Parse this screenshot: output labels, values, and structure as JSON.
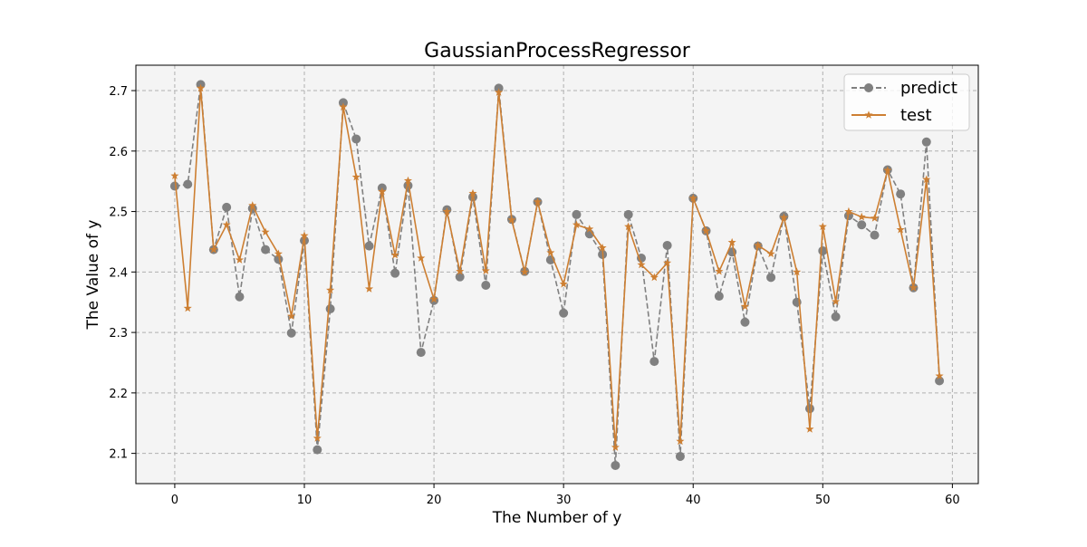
{
  "chart_data": {
    "type": "line",
    "title": "GaussianProcessRegressor",
    "xlabel": "The Number of y",
    "ylabel": "The Value of y",
    "xlim": [
      -3,
      62
    ],
    "ylim": [
      2.05,
      2.742
    ],
    "xticks": [
      0,
      10,
      20,
      30,
      40,
      50,
      60
    ],
    "yticks": [
      2.1,
      2.2,
      2.3,
      2.4,
      2.5,
      2.6,
      2.7
    ],
    "grid": true,
    "legend": "top-right",
    "series": [
      {
        "name": "predict",
        "color": "#808080",
        "linestyle": "dashed",
        "marker": "circle",
        "x": [
          0,
          1,
          2,
          3,
          4,
          5,
          6,
          7,
          8,
          9,
          10,
          11,
          12,
          13,
          14,
          15,
          16,
          17,
          18,
          19,
          20,
          21,
          22,
          23,
          24,
          25,
          26,
          27,
          28,
          29,
          30,
          31,
          32,
          33,
          34,
          35,
          36,
          37,
          38,
          39,
          40,
          41,
          42,
          43,
          44,
          45,
          46,
          47,
          48,
          49,
          50,
          51,
          52,
          53,
          54,
          55,
          56,
          57,
          58,
          59
        ],
        "values": [
          2.542,
          2.545,
          2.71,
          2.437,
          2.507,
          2.359,
          2.505,
          2.437,
          2.421,
          2.299,
          2.452,
          2.106,
          2.339,
          2.68,
          2.62,
          2.443,
          2.539,
          2.398,
          2.543,
          2.267,
          2.353,
          2.503,
          2.392,
          2.524,
          2.378,
          2.704,
          2.487,
          2.401,
          2.516,
          2.42,
          2.332,
          2.495,
          2.463,
          2.429,
          2.08,
          2.495,
          2.423,
          2.252,
          2.444,
          2.095,
          2.522,
          2.468,
          2.36,
          2.433,
          2.317,
          2.443,
          2.391,
          2.492,
          2.35,
          2.174,
          2.435,
          2.326,
          2.493,
          2.478,
          2.461,
          2.569,
          2.529,
          2.374,
          2.615,
          2.22
        ]
      },
      {
        "name": "test",
        "color": "#cd7f32",
        "linestyle": "solid",
        "marker": "star",
        "x": [
          0,
          1,
          2,
          3,
          4,
          5,
          6,
          7,
          8,
          9,
          10,
          11,
          12,
          13,
          14,
          15,
          16,
          17,
          18,
          19,
          20,
          21,
          22,
          23,
          24,
          25,
          26,
          27,
          28,
          29,
          30,
          31,
          32,
          33,
          34,
          35,
          36,
          37,
          38,
          39,
          40,
          41,
          42,
          43,
          44,
          45,
          46,
          47,
          48,
          49,
          50,
          51,
          52,
          53,
          54,
          55,
          56,
          57,
          58,
          59
        ],
        "values": [
          2.559,
          2.34,
          2.704,
          2.437,
          2.478,
          2.42,
          2.51,
          2.466,
          2.43,
          2.327,
          2.46,
          2.125,
          2.37,
          2.673,
          2.557,
          2.372,
          2.533,
          2.428,
          2.551,
          2.423,
          2.355,
          2.5,
          2.401,
          2.53,
          2.402,
          2.697,
          2.486,
          2.4,
          2.516,
          2.432,
          2.38,
          2.478,
          2.471,
          2.44,
          2.11,
          2.475,
          2.412,
          2.391,
          2.415,
          2.12,
          2.522,
          2.468,
          2.401,
          2.449,
          2.343,
          2.444,
          2.43,
          2.49,
          2.4,
          2.14,
          2.475,
          2.351,
          2.5,
          2.491,
          2.489,
          2.568,
          2.47,
          2.374,
          2.553,
          2.228
        ]
      }
    ]
  }
}
